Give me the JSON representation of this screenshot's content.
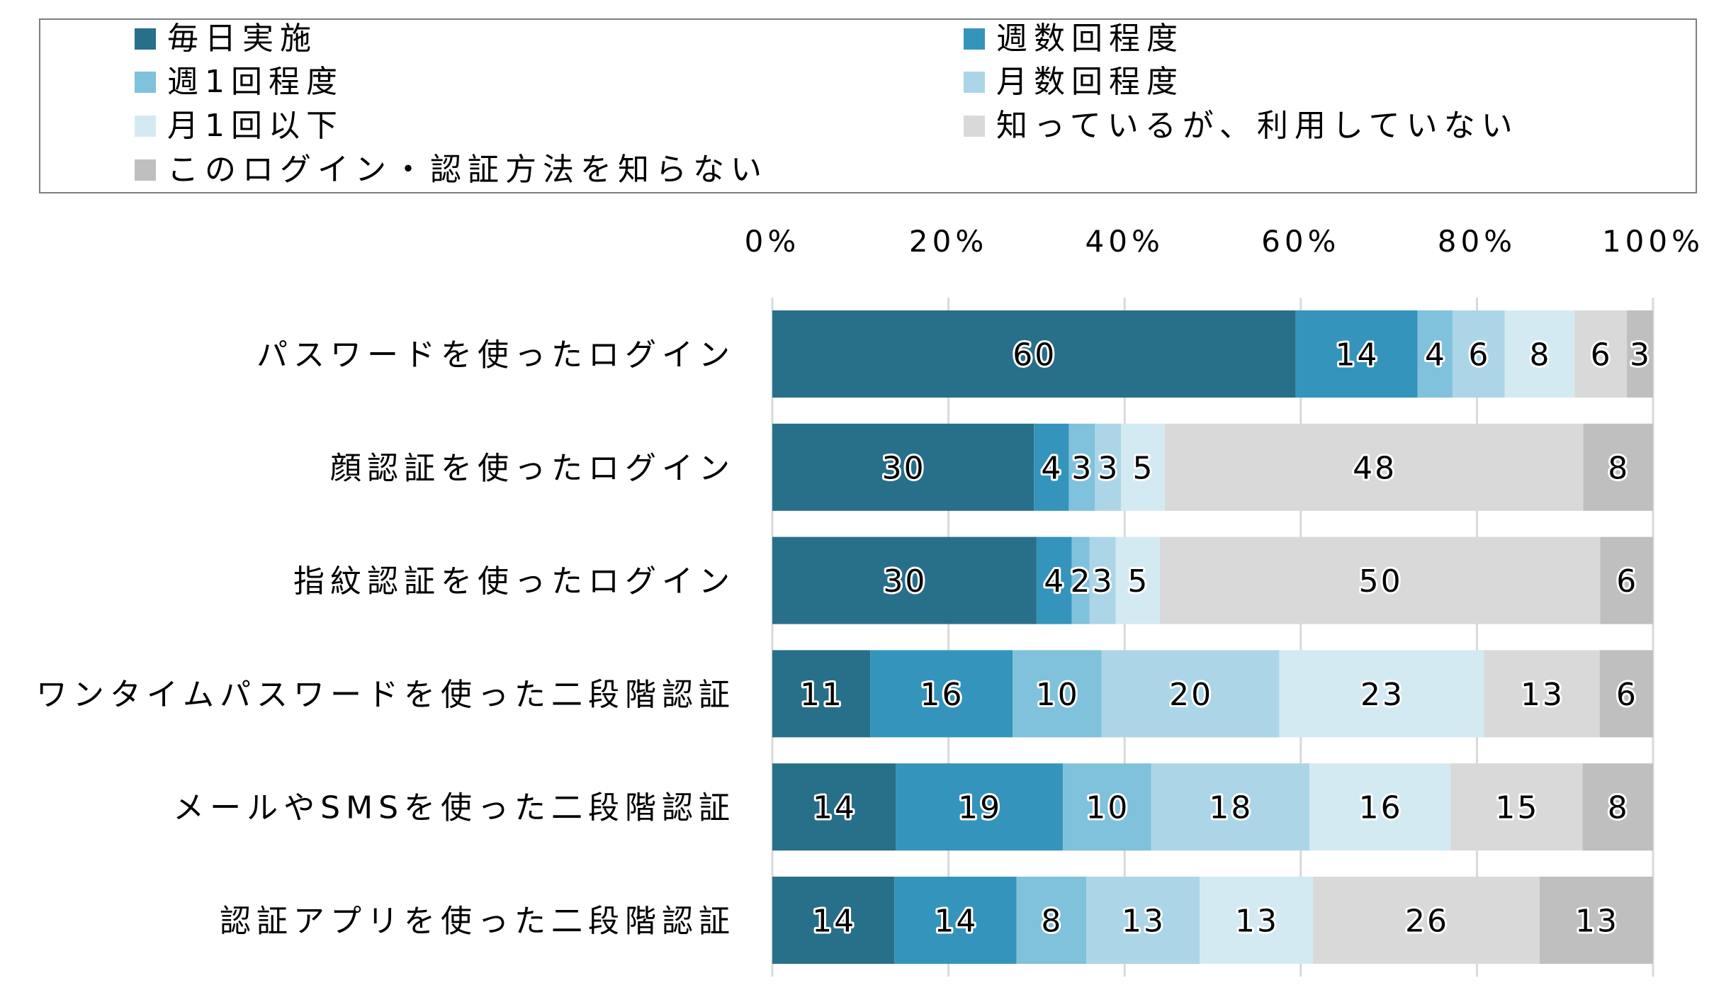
{
  "chart_data": {
    "type": "bar",
    "orientation": "horizontal",
    "stacked": "percent",
    "title": "",
    "xlabel": "",
    "ylabel": "",
    "xlim": [
      0,
      100
    ],
    "x_ticks": [
      "0%",
      "20%",
      "40%",
      "60%",
      "80%",
      "100%"
    ],
    "grid": true,
    "legend_position": "top",
    "categories": [
      "パスワードを使ったログイン",
      "顔認証を使ったログイン",
      "指紋認証を使ったログイン",
      "ワンタイムパスワードを使った二段階認証",
      "メールやSMSを使った二段階認証",
      "認証アプリを使った二段階認証"
    ],
    "series": [
      {
        "name": "毎日実施",
        "color": "#286F8A",
        "values": [
          60,
          30,
          30,
          11,
          14,
          14
        ]
      },
      {
        "name": "週数回程度",
        "color": "#3594BB",
        "values": [
          14,
          4,
          4,
          16,
          19,
          14
        ]
      },
      {
        "name": "週1回程度",
        "color": "#80C1DC",
        "values": [
          4,
          3,
          2,
          10,
          10,
          8
        ]
      },
      {
        "name": "月数回程度",
        "color": "#ACD6E7",
        "values": [
          6,
          3,
          3,
          20,
          18,
          13
        ]
      },
      {
        "name": "月1回以下",
        "color": "#D4EAF3",
        "values": [
          8,
          5,
          5,
          23,
          16,
          13
        ]
      },
      {
        "name": "知っているが、利用していない",
        "color": "#D9D9D9",
        "values": [
          6,
          48,
          50,
          13,
          15,
          26
        ]
      },
      {
        "name": "このログイン・認証方法を知らない",
        "color": "#BFBFBF",
        "values": [
          3,
          8,
          6,
          6,
          8,
          13
        ]
      }
    ]
  },
  "legend_order": [
    0,
    1,
    2,
    3,
    4,
    5,
    6
  ]
}
